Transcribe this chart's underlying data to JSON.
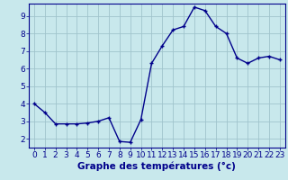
{
  "hours": [
    0,
    1,
    2,
    3,
    4,
    5,
    6,
    7,
    8,
    9,
    10,
    11,
    12,
    13,
    14,
    15,
    16,
    17,
    18,
    19,
    20,
    21,
    22,
    23
  ],
  "temps": [
    4.0,
    3.5,
    2.85,
    2.85,
    2.85,
    2.9,
    3.0,
    3.2,
    1.85,
    1.8,
    3.1,
    6.3,
    7.3,
    8.2,
    8.4,
    9.5,
    9.3,
    8.4,
    8.0,
    6.6,
    6.3,
    6.6,
    6.7,
    6.5
  ],
  "ylim_min": 1.5,
  "ylim_max": 9.7,
  "yticks": [
    2,
    3,
    4,
    5,
    6,
    7,
    8,
    9
  ],
  "xticks": [
    0,
    1,
    2,
    3,
    4,
    5,
    6,
    7,
    8,
    9,
    10,
    11,
    12,
    13,
    14,
    15,
    16,
    17,
    18,
    19,
    20,
    21,
    22,
    23
  ],
  "line_color": "#00008B",
  "marker": "+",
  "bg_color": "#c8e8ec",
  "grid_color": "#a0c4cc",
  "xlabel": "Graphe des températures (°c)",
  "xlabel_color": "#00008B",
  "xlabel_fontsize": 7.5,
  "tick_color": "#00008B",
  "tick_fontsize": 6.5,
  "spine_color": "#00008B",
  "line_width": 1.0,
  "marker_size": 3.5,
  "marker_edge_width": 1.0
}
